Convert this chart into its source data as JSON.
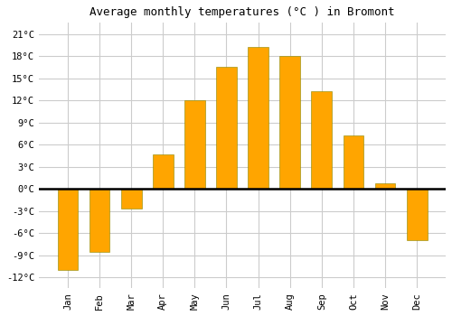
{
  "title": "Average monthly temperatures (°C ) in Bromont",
  "months": [
    "Jan",
    "Feb",
    "Mar",
    "Apr",
    "May",
    "Jun",
    "Jul",
    "Aug",
    "Sep",
    "Oct",
    "Nov",
    "Dec"
  ],
  "values": [
    -11,
    -8.5,
    -2.7,
    4.7,
    12,
    16.5,
    19.2,
    18,
    13.2,
    7.2,
    0.8,
    -7
  ],
  "bar_color": "#FFA500",
  "bar_edge_color": "#888800",
  "background_color": "#ffffff",
  "plot_bg_color": "#ffffff",
  "grid_color": "#cccccc",
  "yticks": [
    -12,
    -9,
    -6,
    -3,
    0,
    3,
    6,
    9,
    12,
    15,
    18,
    21
  ],
  "ylim": [
    -13.5,
    22.5
  ],
  "zero_line_color": "#000000",
  "title_fontsize": 9,
  "tick_fontsize": 7.5,
  "bar_width": 0.65
}
